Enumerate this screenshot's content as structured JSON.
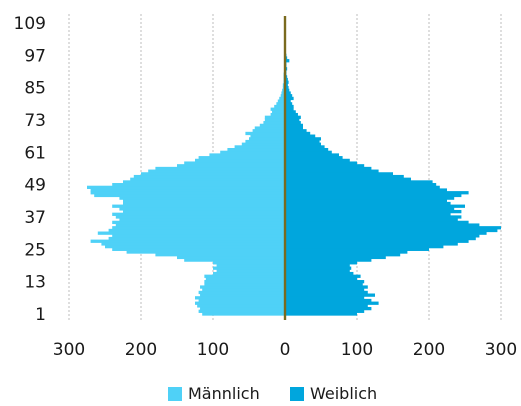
{
  "colors": {
    "male": "#4fd1f7",
    "female": "#00a6dd",
    "center_line": "#7a6a1e",
    "grid": "#c8c8c8"
  },
  "legend": [
    {
      "key": "male",
      "label": "Männlich"
    },
    {
      "key": "female",
      "label": "Weiblich"
    }
  ],
  "chart_data": {
    "type": "bar",
    "orientation": "horizontal",
    "layout": "population-pyramid",
    "grid": true,
    "legend_position": "bottom",
    "xlim": [
      -300,
      300
    ],
    "x_tick_values": [
      -300,
      -200,
      -100,
      0,
      100,
      200,
      300
    ],
    "x_tick_labels": [
      "300",
      "200",
      "100",
      "0",
      "100",
      "200",
      "300"
    ],
    "ylim": [
      1,
      109
    ],
    "y_tick_values": [
      1,
      13,
      25,
      37,
      49,
      61,
      73,
      85,
      97,
      109
    ],
    "y_tick_labels": [
      "1",
      "13",
      "25",
      "37",
      "49",
      "61",
      "73",
      "85",
      "97",
      "109"
    ],
    "age": [
      1,
      2,
      3,
      4,
      5,
      6,
      7,
      8,
      9,
      10,
      11,
      12,
      13,
      14,
      15,
      16,
      17,
      18,
      19,
      20,
      21,
      22,
      23,
      24,
      25,
      26,
      27,
      28,
      29,
      30,
      31,
      32,
      33,
      34,
      35,
      36,
      37,
      38,
      39,
      40,
      41,
      42,
      43,
      44,
      45,
      46,
      47,
      48,
      49,
      50,
      51,
      52,
      53,
      54,
      55,
      56,
      57,
      58,
      59,
      60,
      61,
      62,
      63,
      64,
      65,
      66,
      67,
      68,
      69,
      70,
      71,
      72,
      73,
      74,
      75,
      76,
      77,
      78,
      79,
      80,
      81,
      82,
      83,
      84,
      85,
      86,
      87,
      88,
      89,
      90,
      91,
      92,
      93,
      94,
      95,
      96,
      97,
      98,
      99,
      100,
      101,
      102,
      103,
      104,
      105,
      106,
      107,
      108,
      109
    ],
    "series": [
      {
        "name": "Männlich",
        "values": [
          115,
          120,
          118,
          122,
          125,
          120,
          125,
          118,
          120,
          115,
          118,
          112,
          112,
          110,
          112,
          100,
          95,
          100,
          95,
          100,
          140,
          150,
          180,
          220,
          240,
          250,
          255,
          270,
          245,
          240,
          260,
          245,
          240,
          235,
          240,
          230,
          235,
          240,
          225,
          230,
          240,
          225,
          225,
          230,
          265,
          270,
          270,
          275,
          240,
          225,
          215,
          210,
          200,
          190,
          180,
          150,
          140,
          125,
          120,
          105,
          90,
          80,
          70,
          60,
          55,
          50,
          48,
          55,
          45,
          42,
          35,
          30,
          28,
          28,
          20,
          18,
          20,
          15,
          12,
          10,
          8,
          6,
          5,
          4,
          3,
          3,
          2,
          2,
          2,
          2,
          1,
          1,
          1,
          1,
          1,
          1,
          1,
          1,
          1,
          0,
          0,
          0,
          0,
          0,
          0,
          0,
          0,
          0,
          0
        ]
      },
      {
        "name": "Weiblich",
        "values": [
          100,
          110,
          120,
          115,
          130,
          120,
          110,
          125,
          115,
          110,
          115,
          108,
          110,
          100,
          105,
          95,
          90,
          92,
          90,
          100,
          120,
          140,
          160,
          170,
          200,
          220,
          240,
          255,
          265,
          270,
          280,
          295,
          300,
          270,
          255,
          240,
          245,
          230,
          245,
          235,
          250,
          230,
          225,
          235,
          245,
          255,
          225,
          215,
          210,
          205,
          175,
          165,
          150,
          130,
          120,
          110,
          100,
          90,
          80,
          75,
          65,
          60,
          55,
          50,
          48,
          50,
          42,
          35,
          30,
          25,
          25,
          22,
          20,
          22,
          18,
          15,
          12,
          12,
          10,
          8,
          12,
          10,
          8,
          6,
          5,
          4,
          5,
          4,
          3,
          2,
          2,
          3,
          2,
          2,
          6,
          3,
          2,
          1,
          1,
          0,
          0,
          0,
          0,
          0,
          0,
          0,
          0,
          0,
          0
        ]
      }
    ]
  }
}
